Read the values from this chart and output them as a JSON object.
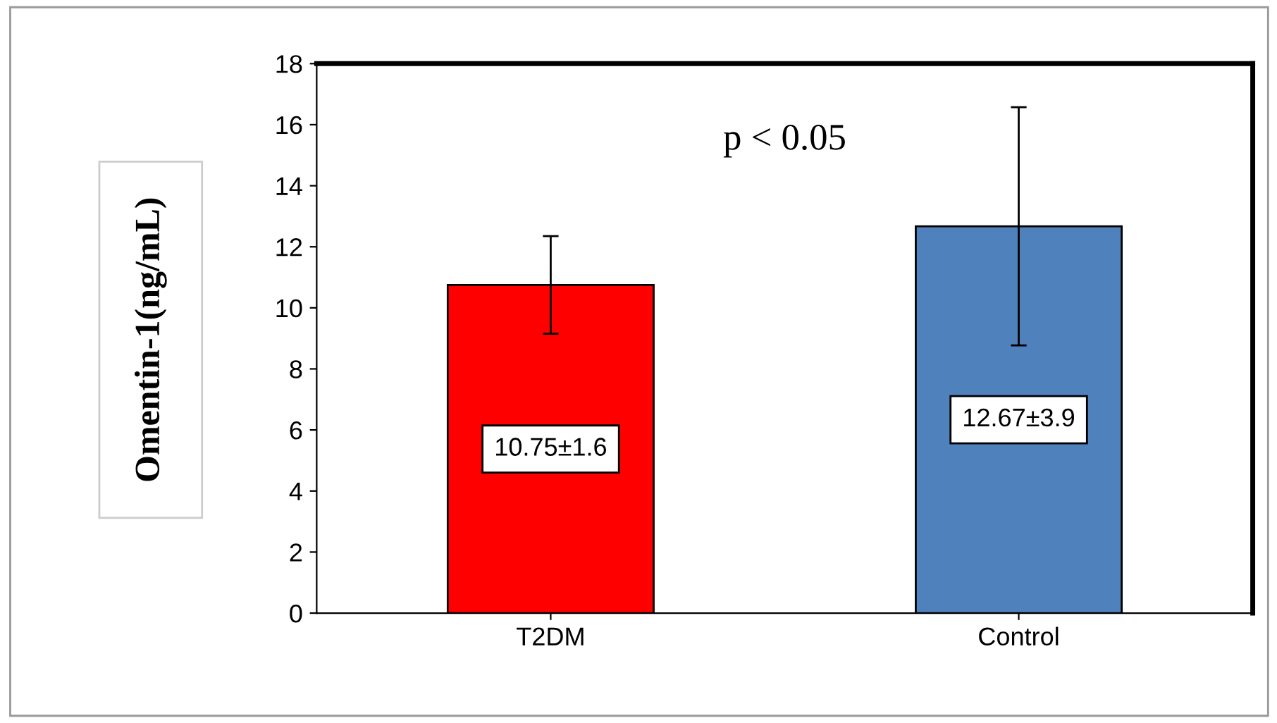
{
  "chart_data": {
    "type": "bar",
    "ylabel": "Omentin-1(ng/mL)",
    "categories": [
      "T2DM",
      "Control"
    ],
    "values": [
      10.75,
      12.67
    ],
    "colors": [
      "#ff0000",
      "#4f81bd"
    ],
    "errors": [
      1.6,
      3.9
    ],
    "value_labels": [
      "10.75±1.6",
      "12.67±3.9"
    ],
    "annotations": [
      "p < 0.05"
    ],
    "ylim": [
      0,
      18
    ],
    "yticks": [
      0,
      2,
      4,
      6,
      8,
      10,
      12,
      14,
      16,
      18
    ],
    "grid": false,
    "legend": false
  }
}
